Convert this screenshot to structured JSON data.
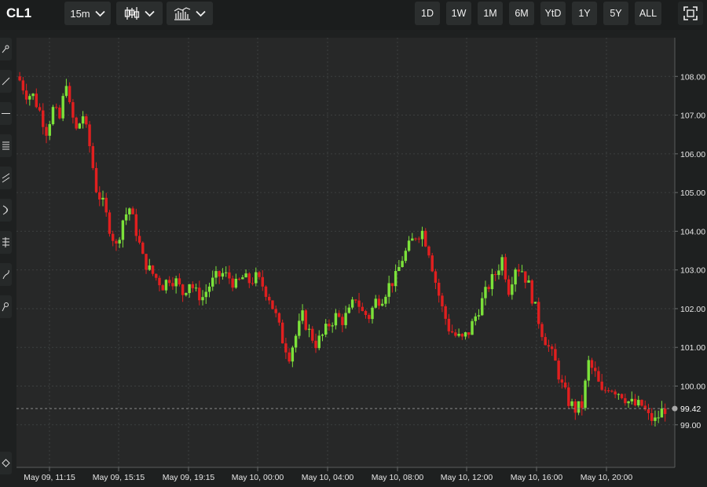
{
  "toolbar": {
    "symbol": "CL1",
    "interval_label": "15m",
    "chart_type_icon": "candlestick-icon",
    "indicators_icon": "indicators-icon",
    "ranges": [
      "1D",
      "1W",
      "1M",
      "6M",
      "YtD",
      "1Y",
      "5Y",
      "ALL"
    ],
    "fullscreen_icon": "fullscreen-icon"
  },
  "drawing_tools": [
    "pointer-tool-icon",
    "trend-line-icon",
    "horizontal-line-icon",
    "fib-retracement-icon",
    "channel-icon",
    "arc-icon",
    "pitchfork-icon",
    "brush-icon",
    "text-annotation-icon"
  ],
  "colors": {
    "up": "#7ce23a",
    "down": "#e01f1f",
    "background": "#272828",
    "grid": "#3c3f3f",
    "axis_text": "#e6e6e6",
    "last_price_line": "#8a8a8a",
    "last_price_dot": "#a8a8a8"
  },
  "chart_data": {
    "type": "candlestick",
    "symbol": "CL1",
    "interval": "15m",
    "last_price": "99.42",
    "y_ticks": [
      "108.00",
      "107.00",
      "106.00",
      "105.00",
      "104.00",
      "103.00",
      "102.00",
      "101.00",
      "100.00",
      "99.00"
    ],
    "ylim": [
      97.9,
      109.0
    ],
    "x_ticks": [
      "May 09, 11:15",
      "May 09, 15:15",
      "May 09, 19:15",
      "May 10, 00:00",
      "May 10, 04:00",
      "May 10, 08:00",
      "May 10, 12:00",
      "May 10, 16:00",
      "May 10, 20:00"
    ],
    "grid": true,
    "close_path": [
      [
        0,
        107.9
      ],
      [
        2,
        107.55
      ],
      [
        4,
        107.5
      ],
      [
        6,
        107.1
      ],
      [
        8,
        106.6
      ],
      [
        10,
        107.15
      ],
      [
        12,
        106.9
      ],
      [
        14,
        107.9
      ],
      [
        15,
        107.2
      ],
      [
        17,
        106.6
      ],
      [
        19,
        107.0
      ],
      [
        21,
        106.2
      ],
      [
        23,
        105.1
      ],
      [
        25,
        104.7
      ],
      [
        27,
        104.1
      ],
      [
        29,
        103.6
      ],
      [
        31,
        104.3
      ],
      [
        33,
        104.6
      ],
      [
        35,
        104.0
      ],
      [
        37,
        103.3
      ],
      [
        39,
        103.0
      ],
      [
        41,
        102.8
      ],
      [
        43,
        102.6
      ],
      [
        45,
        102.8
      ],
      [
        47,
        102.7
      ],
      [
        49,
        102.4
      ],
      [
        51,
        102.7
      ],
      [
        53,
        102.4
      ],
      [
        55,
        102.3
      ],
      [
        57,
        102.6
      ],
      [
        59,
        102.8
      ],
      [
        61,
        102.9
      ],
      [
        63,
        102.8
      ],
      [
        65,
        102.6
      ],
      [
        67,
        102.8
      ],
      [
        69,
        102.7
      ],
      [
        71,
        102.8
      ],
      [
        73,
        102.6
      ],
      [
        75,
        102.3
      ],
      [
        77,
        101.8
      ],
      [
        79,
        101.2
      ],
      [
        81,
        100.8
      ],
      [
        83,
        101.3
      ],
      [
        85,
        101.8
      ],
      [
        87,
        101.4
      ],
      [
        89,
        101.1
      ],
      [
        91,
        101.3
      ],
      [
        93,
        101.6
      ],
      [
        95,
        101.8
      ],
      [
        97,
        101.7
      ],
      [
        99,
        101.9
      ],
      [
        101,
        102.3
      ],
      [
        103,
        101.9
      ],
      [
        105,
        101.8
      ],
      [
        107,
        102.2
      ],
      [
        109,
        102.3
      ],
      [
        111,
        102.6
      ],
      [
        113,
        102.8
      ],
      [
        115,
        103.3
      ],
      [
        117,
        103.6
      ],
      [
        119,
        103.9
      ],
      [
        121,
        104.0
      ],
      [
        123,
        103.5
      ],
      [
        125,
        102.7
      ],
      [
        127,
        102.0
      ],
      [
        129,
        101.5
      ],
      [
        131,
        101.3
      ],
      [
        133,
        101.2
      ],
      [
        135,
        101.4
      ],
      [
        137,
        101.8
      ],
      [
        139,
        102.2
      ],
      [
        141,
        102.6
      ],
      [
        143,
        102.9
      ],
      [
        145,
        103.3
      ],
      [
        147,
        102.5
      ],
      [
        149,
        103.1
      ],
      [
        151,
        103.0
      ],
      [
        153,
        102.6
      ],
      [
        155,
        102.0
      ],
      [
        157,
        101.4
      ],
      [
        159,
        101.0
      ],
      [
        161,
        100.6
      ],
      [
        163,
        100.0
      ],
      [
        165,
        99.6
      ],
      [
        167,
        99.4
      ],
      [
        169,
        99.5
      ],
      [
        171,
        100.6
      ],
      [
        173,
        100.3
      ],
      [
        175,
        99.8
      ],
      [
        177,
        100.0
      ],
      [
        179,
        99.9
      ],
      [
        181,
        99.8
      ],
      [
        183,
        99.6
      ],
      [
        185,
        99.5
      ],
      [
        187,
        99.5
      ],
      [
        189,
        99.2
      ],
      [
        191,
        99.1
      ],
      [
        193,
        99.35
      ],
      [
        194,
        99.42
      ]
    ]
  }
}
